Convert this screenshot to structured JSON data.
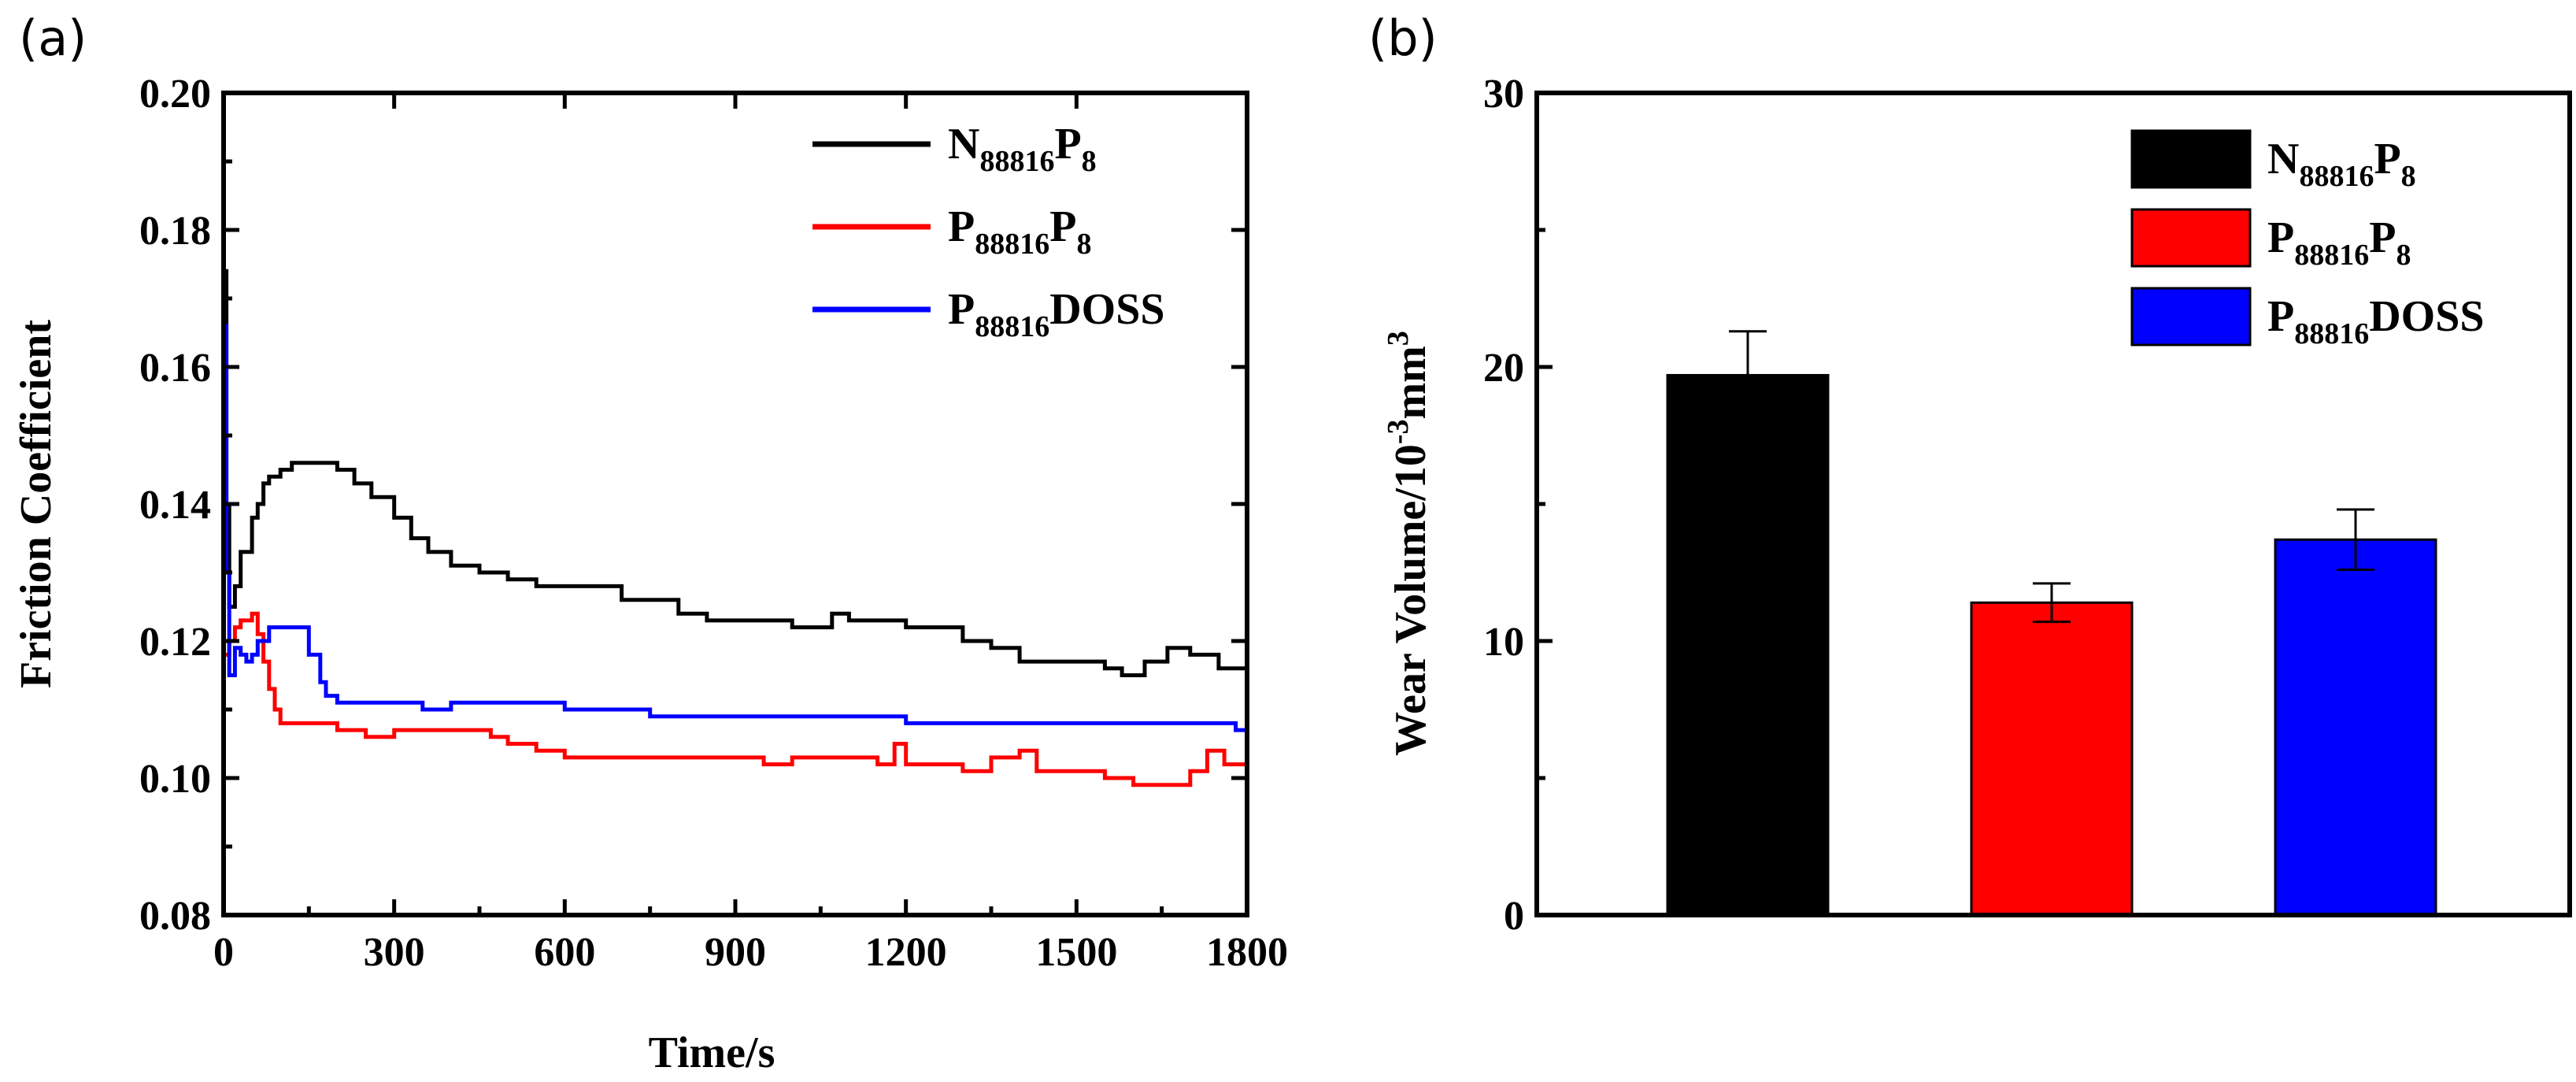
{
  "chart_data": [
    {
      "panel_label": "(a)",
      "type": "line",
      "xlabel": "Time/s",
      "ylabel": "Friction Coefficient",
      "xlim": [
        0,
        1800
      ],
      "ylim": [
        0.08,
        0.2
      ],
      "x_ticks": [
        "0",
        "300",
        "600",
        "900",
        "1200",
        "1500",
        "1800"
      ],
      "y_ticks": [
        "0.08",
        "0.10",
        "0.12",
        "0.14",
        "0.16",
        "0.18",
        "0.20"
      ],
      "legend_position": "top-right",
      "series": [
        {
          "name": "N88816P8",
          "legend_main": "N",
          "legend_sub": "88816",
          "legend_main2": "P",
          "legend_sub2": "8",
          "color": "#000000",
          "points": [
            [
              0,
              0.174
            ],
            [
              5,
              0.14
            ],
            [
              10,
              0.125
            ],
            [
              20,
              0.128
            ],
            [
              30,
              0.133
            ],
            [
              40,
              0.133
            ],
            [
              50,
              0.138
            ],
            [
              60,
              0.14
            ],
            [
              70,
              0.143
            ],
            [
              80,
              0.144
            ],
            [
              100,
              0.145
            ],
            [
              120,
              0.146
            ],
            [
              150,
              0.146
            ],
            [
              180,
              0.146
            ],
            [
              200,
              0.145
            ],
            [
              230,
              0.143
            ],
            [
              260,
              0.141
            ],
            [
              300,
              0.138
            ],
            [
              330,
              0.135
            ],
            [
              360,
              0.133
            ],
            [
              400,
              0.131
            ],
            [
              450,
              0.13
            ],
            [
              500,
              0.129
            ],
            [
              550,
              0.128
            ],
            [
              600,
              0.128
            ],
            [
              700,
              0.126
            ],
            [
              800,
              0.124
            ],
            [
              850,
              0.123
            ],
            [
              900,
              0.123
            ],
            [
              1000,
              0.122
            ],
            [
              1050,
              0.122
            ],
            [
              1070,
              0.124
            ],
            [
              1100,
              0.123
            ],
            [
              1200,
              0.122
            ],
            [
              1300,
              0.12
            ],
            [
              1350,
              0.119
            ],
            [
              1400,
              0.117
            ],
            [
              1450,
              0.117
            ],
            [
              1500,
              0.117
            ],
            [
              1550,
              0.116
            ],
            [
              1580,
              0.115
            ],
            [
              1620,
              0.117
            ],
            [
              1660,
              0.119
            ],
            [
              1700,
              0.118
            ],
            [
              1750,
              0.116
            ],
            [
              1800,
              0.115
            ]
          ]
        },
        {
          "name": "P88816P8",
          "legend_main": "P",
          "legend_sub": "88816",
          "legend_main2": "P",
          "legend_sub2": "8",
          "color": "#ff0000",
          "points": [
            [
              0,
              0.118
            ],
            [
              10,
              0.12
            ],
            [
              20,
              0.122
            ],
            [
              30,
              0.123
            ],
            [
              50,
              0.124
            ],
            [
              60,
              0.121
            ],
            [
              70,
              0.117
            ],
            [
              80,
              0.113
            ],
            [
              90,
              0.11
            ],
            [
              100,
              0.108
            ],
            [
              150,
              0.108
            ],
            [
              200,
              0.107
            ],
            [
              250,
              0.106
            ],
            [
              300,
              0.107
            ],
            [
              350,
              0.107
            ],
            [
              400,
              0.107
            ],
            [
              450,
              0.107
            ],
            [
              470,
              0.106
            ],
            [
              500,
              0.105
            ],
            [
              550,
              0.104
            ],
            [
              600,
              0.103
            ],
            [
              800,
              0.103
            ],
            [
              900,
              0.103
            ],
            [
              950,
              0.102
            ],
            [
              1000,
              0.103
            ],
            [
              1100,
              0.103
            ],
            [
              1150,
              0.102
            ],
            [
              1180,
              0.105
            ],
            [
              1200,
              0.102
            ],
            [
              1250,
              0.102
            ],
            [
              1300,
              0.101
            ],
            [
              1350,
              0.103
            ],
            [
              1400,
              0.104
            ],
            [
              1430,
              0.101
            ],
            [
              1500,
              0.101
            ],
            [
              1550,
              0.1
            ],
            [
              1600,
              0.099
            ],
            [
              1700,
              0.101
            ],
            [
              1730,
              0.104
            ],
            [
              1760,
              0.102
            ],
            [
              1800,
              0.1
            ]
          ]
        },
        {
          "name": "P88816DOSS",
          "legend_main": "P",
          "legend_sub": "88816",
          "legend_main2": "DOSS",
          "legend_sub2": "",
          "color": "#0000ff",
          "points": [
            [
              0,
              0.166
            ],
            [
              5,
              0.13
            ],
            [
              10,
              0.115
            ],
            [
              20,
              0.119
            ],
            [
              30,
              0.118
            ],
            [
              40,
              0.117
            ],
            [
              50,
              0.118
            ],
            [
              60,
              0.12
            ],
            [
              80,
              0.122
            ],
            [
              100,
              0.122
            ],
            [
              130,
              0.122
            ],
            [
              150,
              0.118
            ],
            [
              170,
              0.114
            ],
            [
              180,
              0.112
            ],
            [
              200,
              0.111
            ],
            [
              300,
              0.111
            ],
            [
              350,
              0.11
            ],
            [
              400,
              0.111
            ],
            [
              500,
              0.111
            ],
            [
              600,
              0.11
            ],
            [
              700,
              0.11
            ],
            [
              750,
              0.109
            ],
            [
              800,
              0.109
            ],
            [
              1000,
              0.109
            ],
            [
              1200,
              0.108
            ],
            [
              1500,
              0.108
            ],
            [
              1780,
              0.107
            ],
            [
              1800,
              0.108
            ]
          ]
        }
      ]
    },
    {
      "panel_label": "(b)",
      "type": "bar",
      "xlabel": "",
      "ylabel_main": "Wear Volume/10",
      "ylabel_sup": "-3",
      "ylabel_unit": "mm",
      "ylabel_sup2": "3",
      "ylim": [
        0,
        30
      ],
      "y_ticks": [
        "0",
        "10",
        "20",
        "30"
      ],
      "legend_position": "top-right",
      "categories": [
        "N88816P8",
        "P88816P8",
        "P88816DOSS"
      ],
      "values": [
        19.7,
        11.4,
        13.7
      ],
      "errors": [
        1.6,
        0.7,
        1.1
      ],
      "colors": [
        "#000000",
        "#ff0000",
        "#0000ff"
      ],
      "legend": [
        {
          "main": "N",
          "sub": "88816",
          "main2": "P",
          "sub2": "8"
        },
        {
          "main": "P",
          "sub": "88816",
          "main2": "P",
          "sub2": "8"
        },
        {
          "main": "P",
          "sub": "88816",
          "main2": "DOSS",
          "sub2": ""
        }
      ]
    }
  ]
}
